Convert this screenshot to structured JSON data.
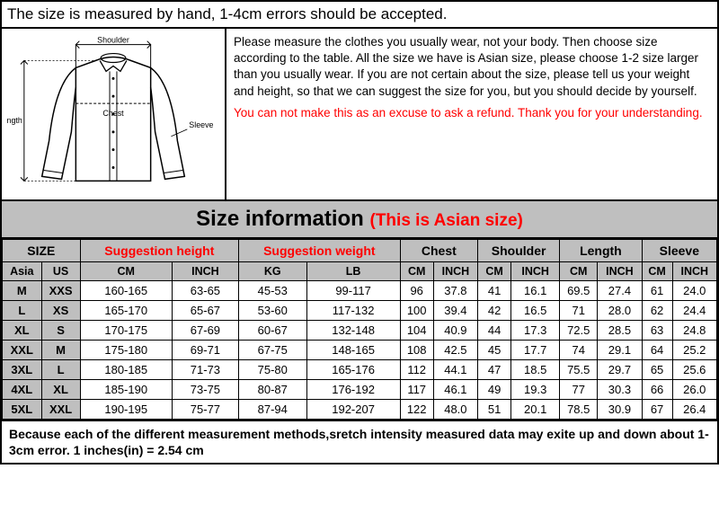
{
  "topNotice": "The size is measured by hand, 1-4cm errors should be accepted.",
  "instructionText": "Please measure the clothes you usually wear, not your body. Then choose size according to the table. All the size we have is Asian size, please choose 1-2 size larger than you usually wear. If you are not certain about the size, please tell us your weight and height, so that we can suggest the size for you, but you should decide by yourself.",
  "warningText": "You can not make this as an excuse to ask a refund. Thank you for your understanding.",
  "titleMain": "Size information ",
  "titleAsian": "(This is Asian size)",
  "diagram": {
    "labelShoulder": "Shoulder",
    "labelLength": "Length",
    "labelChest": "Chest",
    "labelSleeve": "Sleeve"
  },
  "headers": {
    "size": "SIZE",
    "suggHeight": "Suggestion height",
    "suggWeight": "Suggestion weight",
    "chest": "Chest",
    "shoulder": "Shoulder",
    "length": "Length",
    "sleeve": "Sleeve",
    "asia": "Asia",
    "us": "US",
    "cm": "CM",
    "inch": "INCH",
    "kg": "KG",
    "lb": "LB"
  },
  "rows": [
    {
      "asia": "M",
      "us": "XXS",
      "hcm": "160-165",
      "hin": "63-65",
      "wkg": "45-53",
      "wlb": "99-117",
      "ccm": "96",
      "cin": "37.8",
      "scm": "41",
      "sin": "16.1",
      "lcm": "69.5",
      "lin": "27.4",
      "slcm": "61",
      "slin": "24.0"
    },
    {
      "asia": "L",
      "us": "XS",
      "hcm": "165-170",
      "hin": "65-67",
      "wkg": "53-60",
      "wlb": "117-132",
      "ccm": "100",
      "cin": "39.4",
      "scm": "42",
      "sin": "16.5",
      "lcm": "71",
      "lin": "28.0",
      "slcm": "62",
      "slin": "24.4"
    },
    {
      "asia": "XL",
      "us": "S",
      "hcm": "170-175",
      "hin": "67-69",
      "wkg": "60-67",
      "wlb": "132-148",
      "ccm": "104",
      "cin": "40.9",
      "scm": "44",
      "sin": "17.3",
      "lcm": "72.5",
      "lin": "28.5",
      "slcm": "63",
      "slin": "24.8"
    },
    {
      "asia": "XXL",
      "us": "M",
      "hcm": "175-180",
      "hin": "69-71",
      "wkg": "67-75",
      "wlb": "148-165",
      "ccm": "108",
      "cin": "42.5",
      "scm": "45",
      "sin": "17.7",
      "lcm": "74",
      "lin": "29.1",
      "slcm": "64",
      "slin": "25.2"
    },
    {
      "asia": "3XL",
      "us": "L",
      "hcm": "180-185",
      "hin": "71-73",
      "wkg": "75-80",
      "wlb": "165-176",
      "ccm": "112",
      "cin": "44.1",
      "scm": "47",
      "sin": "18.5",
      "lcm": "75.5",
      "lin": "29.7",
      "slcm": "65",
      "slin": "25.6"
    },
    {
      "asia": "4XL",
      "us": "XL",
      "hcm": "185-190",
      "hin": "73-75",
      "wkg": "80-87",
      "wlb": "176-192",
      "ccm": "117",
      "cin": "46.1",
      "scm": "49",
      "sin": "19.3",
      "lcm": "77",
      "lin": "30.3",
      "slcm": "66",
      "slin": "26.0"
    },
    {
      "asia": "5XL",
      "us": "XXL",
      "hcm": "190-195",
      "hin": "75-77",
      "wkg": "87-94",
      "wlb": "192-207",
      "ccm": "122",
      "cin": "48.0",
      "scm": "51",
      "sin": "20.1",
      "lcm": "78.5",
      "lin": "30.9",
      "slcm": "67",
      "slin": "26.4"
    }
  ],
  "footer": "Because each of the different measurement methods,sretch intensity measured data may exite up and down about 1-3cm error.    1 inches(in) = 2.54 cm"
}
